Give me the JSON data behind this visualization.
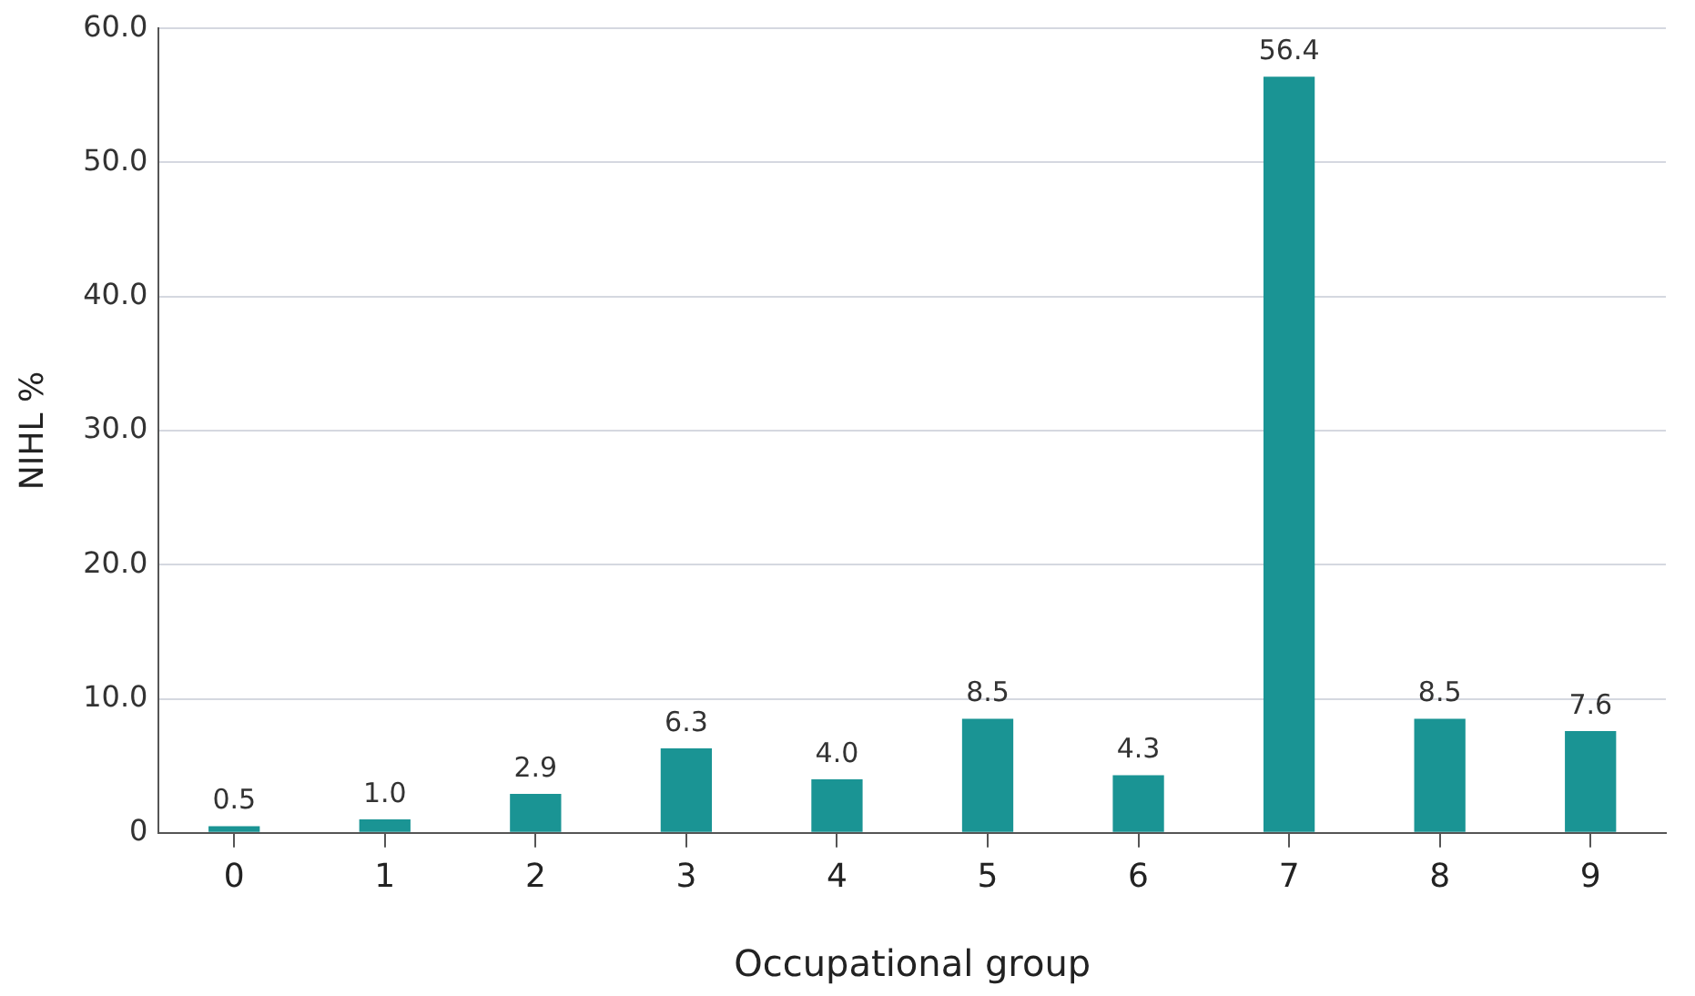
{
  "chart_data": {
    "type": "bar",
    "xlabel": "Occupational group",
    "ylabel": "NIHL %",
    "categories": [
      "0",
      "1",
      "2",
      "3",
      "4",
      "5",
      "6",
      "7",
      "8",
      "9"
    ],
    "values": [
      0.5,
      1.0,
      2.9,
      6.3,
      4.0,
      8.5,
      4.3,
      56.4,
      8.5,
      7.6
    ],
    "value_labels": [
      "0.5",
      "1.0",
      "2.9",
      "6.3",
      "4.0",
      "8.5",
      "4.3",
      "56.4",
      "8.5",
      "7.6"
    ],
    "color": "#1a9494",
    "ylim": [
      0,
      60
    ],
    "yticks": [
      0,
      {
        "value": 10,
        "label": "10.0"
      },
      {
        "value": 20,
        "label": "20.0"
      },
      {
        "value": 30,
        "label": "30.0"
      },
      {
        "value": 40,
        "label": "40.0"
      },
      {
        "value": 50,
        "label": "50.0"
      },
      {
        "value": 60,
        "label": "60.0"
      }
    ],
    "grid": "y",
    "legend": false
  }
}
